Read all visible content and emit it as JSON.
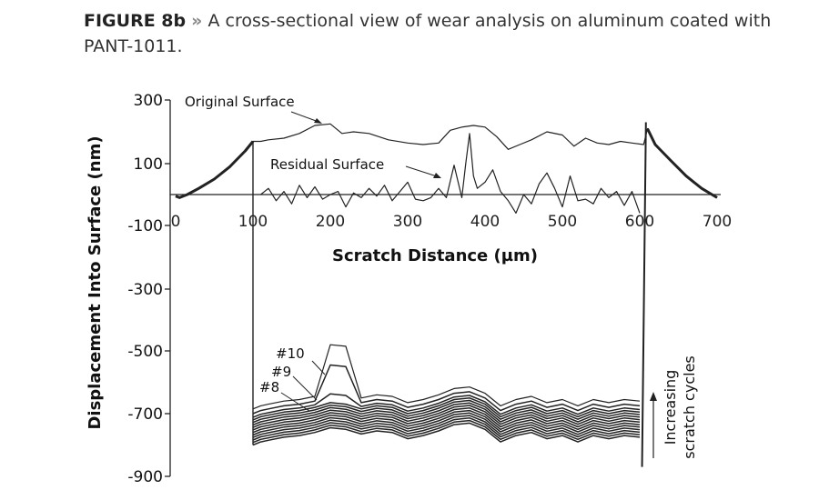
{
  "caption": {
    "figure_label": "FIGURE 8b",
    "separator": "»",
    "text": "A cross-sectional view of wear analysis on aluminum coated with PANT-1011."
  },
  "chart_data": {
    "type": "line",
    "xlabel": "Scratch Distance (µm)",
    "ylabel": "Displacement Into Surface (nm)",
    "xlim": [
      0,
      700
    ],
    "ylim": [
      -900,
      300
    ],
    "x_ticks": [
      "0",
      "100",
      "200",
      "300",
      "400",
      "500",
      "600",
      "700"
    ],
    "y_ticks": [
      "300",
      "100",
      "-100",
      "-300",
      "-500",
      "-700",
      "-900"
    ],
    "y_tick_values": [
      300,
      100,
      -100,
      -300,
      -500,
      -700,
      -900
    ],
    "grid": false,
    "series": [
      {
        "name": "Original Surface",
        "x": [
          0,
          5,
          15,
          30,
          50,
          70,
          90,
          100,
          110,
          120,
          140,
          160,
          180,
          200,
          215,
          230,
          250,
          275,
          300,
          320,
          340,
          355,
          370,
          385,
          400,
          415,
          430,
          445,
          460,
          480,
          500,
          515,
          530,
          545,
          560,
          575,
          590,
          605,
          610,
          620,
          640,
          660,
          680,
          700
        ],
        "y": [
          -5,
          -10,
          0,
          20,
          50,
          90,
          140,
          170,
          170,
          175,
          180,
          195,
          220,
          225,
          195,
          200,
          195,
          175,
          165,
          160,
          165,
          205,
          215,
          220,
          215,
          185,
          145,
          160,
          175,
          200,
          190,
          155,
          180,
          165,
          160,
          170,
          165,
          160,
          210,
          160,
          110,
          60,
          20,
          -10
        ]
      },
      {
        "name": "Residual Surface",
        "x": [
          110,
          120,
          130,
          140,
          150,
          160,
          170,
          180,
          190,
          200,
          210,
          220,
          230,
          240,
          250,
          260,
          270,
          280,
          290,
          300,
          310,
          320,
          330,
          340,
          350,
          360,
          370,
          375,
          380,
          385,
          390,
          400,
          410,
          420,
          430,
          440,
          450,
          460,
          470,
          480,
          490,
          500,
          510,
          520,
          530,
          540,
          550,
          560,
          570,
          580,
          590,
          600
        ],
        "y": [
          0,
          20,
          -20,
          10,
          -30,
          30,
          -10,
          25,
          -15,
          0,
          10,
          -40,
          5,
          -10,
          20,
          -5,
          30,
          -20,
          10,
          40,
          -15,
          -20,
          -10,
          20,
          -10,
          95,
          -10,
          100,
          195,
          60,
          20,
          40,
          80,
          10,
          -20,
          -60,
          0,
          -30,
          35,
          70,
          20,
          -40,
          60,
          -20,
          -15,
          -30,
          20,
          -10,
          10,
          -35,
          10,
          -60
        ]
      }
    ],
    "scratch_series": {
      "x": [
        100,
        110,
        120,
        140,
        160,
        180,
        200,
        220,
        240,
        260,
        280,
        300,
        320,
        340,
        360,
        380,
        400,
        420,
        440,
        460,
        480,
        500,
        520,
        540,
        560,
        580,
        600
      ],
      "baseline": [
        -800,
        -790,
        -785,
        -775,
        -770,
        -760,
        -745,
        -750,
        -765,
        -755,
        -760,
        -780,
        -770,
        -755,
        -735,
        -730,
        -750,
        -790,
        -770,
        -760,
        -780,
        -770,
        -790,
        -770,
        -780,
        -770,
        -775
      ],
      "offsets": [
        0,
        8,
        16,
        24,
        32,
        40,
        48,
        56,
        64,
        72,
        80,
        88,
        100,
        115
      ],
      "peak_x": [
        195,
        210
      ],
      "peak_extra": [
        60,
        150
      ]
    },
    "annotations": {
      "original": "Original Surface",
      "residual": "Residual Surface",
      "n10": "#10",
      "n9": "#9",
      "n8": "#8",
      "increasing_line1": "Increasing",
      "increasing_line2": "scratch cycles"
    }
  }
}
